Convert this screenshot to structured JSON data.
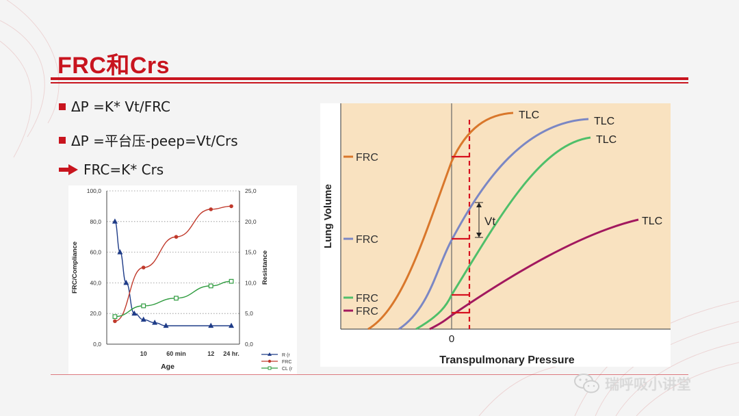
{
  "slide": {
    "title": "FRC和Crs",
    "bullets": [
      {
        "text": "ΔP =K* Vt/FRC",
        "marker": "square"
      },
      {
        "text": "ΔP =平台压-peep=Vt/Crs",
        "marker": "square"
      },
      {
        "text": "FRC=K* Crs",
        "marker": "arrow"
      }
    ],
    "watermark": "瑞呼吸小讲堂",
    "colors": {
      "accent": "#c8141e"
    }
  },
  "chart_data": [
    {
      "type": "line",
      "xlabel": "Age",
      "ylabel": "FRC/Compliance",
      "y2label": "Resistance",
      "x_ticks": [
        "10",
        "60 min",
        "12",
        "24 hr."
      ],
      "y_ticks": [
        "0,0",
        "20,0",
        "40,0",
        "60,0",
        "80,0",
        "100,0"
      ],
      "y2_ticks": [
        "0,0",
        "5,0",
        "10,0",
        "15,0",
        "20,0",
        "25,0"
      ],
      "ylim": [
        0,
        100
      ],
      "y2lim": [
        0,
        25
      ],
      "grid": "horizontal dotted",
      "legend_position": "bottom-right",
      "series": [
        {
          "name": "R (r",
          "axis": "right",
          "color": "#1f3c88",
          "marker": "triangle",
          "points": [
            [
              8,
              20.0
            ],
            [
              13,
              15.0
            ],
            [
              19,
              10.0
            ],
            [
              27,
              5.0
            ],
            [
              36,
              4.0
            ],
            [
              47,
              3.5
            ],
            [
              58,
              3.0
            ],
            [
              102,
              3.0
            ],
            [
              122,
              3.0
            ]
          ]
        },
        {
          "name": "FRC",
          "axis": "left",
          "color": "#c0392b",
          "marker": "circle",
          "points": [
            [
              8,
              15
            ],
            [
              36,
              50
            ],
            [
              68,
              70
            ],
            [
              102,
              88
            ],
            [
              122,
              90
            ]
          ]
        },
        {
          "name": "CL (r",
          "axis": "left",
          "color": "#2e9b3e",
          "marker": "square",
          "points": [
            [
              8,
              18
            ],
            [
              36,
              25
            ],
            [
              68,
              30
            ],
            [
              102,
              38
            ],
            [
              122,
              41
            ]
          ]
        }
      ]
    },
    {
      "type": "line",
      "xlabel": "Transpulmonary Pressure",
      "ylabel": "Lung Volume",
      "x_ticks": [
        "0"
      ],
      "series": [
        {
          "name": "TLC",
          "color": "#d9772b",
          "frc_label": "FRC",
          "vt_label": ""
        },
        {
          "name": "TLC",
          "color": "#7b87c4",
          "frc_label": "FRC",
          "vt_label": "Vt"
        },
        {
          "name": "TLC",
          "color": "#4fbf6a",
          "frc_label": "FRC",
          "vt_label": ""
        },
        {
          "name": "TLC",
          "color": "#a2185e",
          "frc_label": "FRC",
          "vt_label": ""
        }
      ]
    }
  ]
}
